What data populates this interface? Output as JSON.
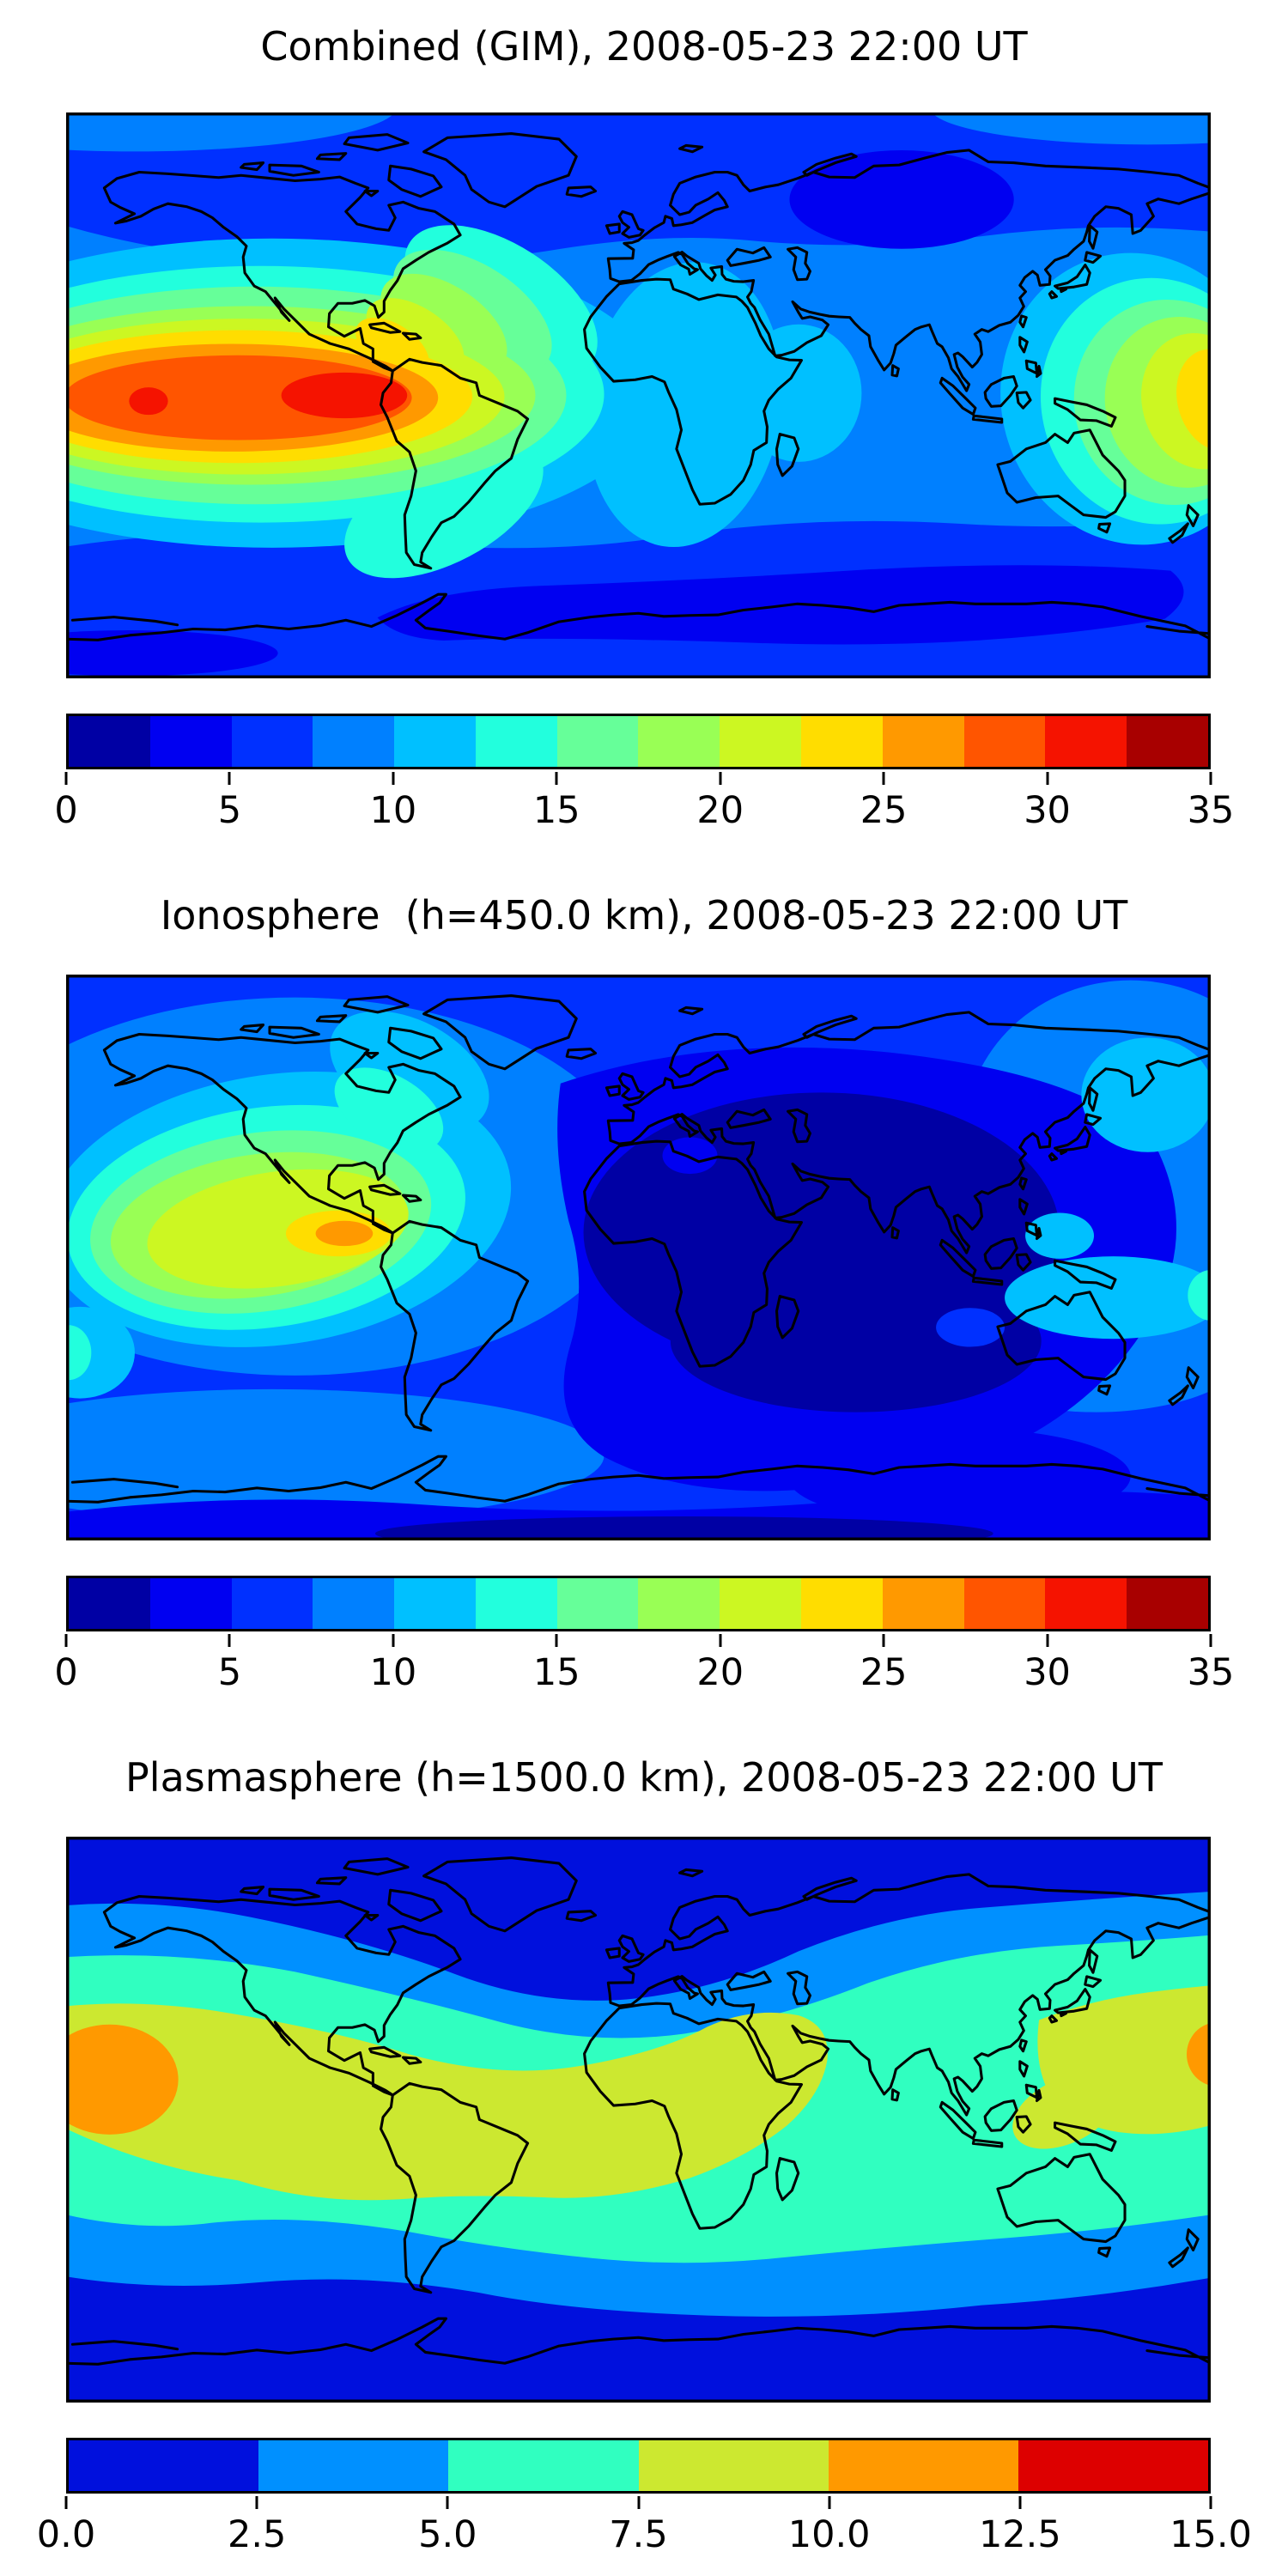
{
  "figure": {
    "background": "#ffffff",
    "coastline_color": "#000000"
  },
  "panels": [
    {
      "id": "combined",
      "title": "Combined (GIM), 2008-05-23 22:00 UT",
      "colorbar": {
        "orientation": "horizontal",
        "ticks": [
          "0",
          "5",
          "10",
          "15",
          "20",
          "25",
          "30",
          "35"
        ],
        "colors": [
          "#0000a4",
          "#0000f1",
          "#0030ff",
          "#0080ff",
          "#00c0ff",
          "#22ffdd",
          "#66ff99",
          "#99ff55",
          "#ccf722",
          "#ffdd00",
          "#ff9900",
          "#ff5500",
          "#f51300",
          "#a80000"
        ]
      }
    },
    {
      "id": "ionosphere",
      "title": "Ionosphere  (h=450.0 km), 2008-05-23 22:00 UT",
      "colorbar": {
        "orientation": "horizontal",
        "ticks": [
          "0",
          "5",
          "10",
          "15",
          "20",
          "25",
          "30",
          "35"
        ],
        "colors": [
          "#0000a4",
          "#0000f1",
          "#0030ff",
          "#0080ff",
          "#00c0ff",
          "#22ffdd",
          "#66ff99",
          "#99ff55",
          "#ccf722",
          "#ffdd00",
          "#ff9900",
          "#ff5500",
          "#f51300",
          "#a80000"
        ]
      }
    },
    {
      "id": "plasmasphere",
      "title": "Plasmasphere (h=1500.0 km), 2008-05-23 22:00 UT",
      "colorbar": {
        "orientation": "horizontal",
        "ticks": [
          "0.0",
          "2.5",
          "5.0",
          "7.5",
          "10.0",
          "12.5",
          "15.0"
        ],
        "colors": [
          "#0010dd",
          "#0090ff",
          "#30ffc0",
          "#cce830",
          "#ff9900",
          "#dd0000"
        ]
      }
    }
  ],
  "chart_data": [
    {
      "type": "heatmap",
      "subtype": "filled-contour-world-map",
      "title": "Combined (GIM), 2008-05-23 22:00 UT",
      "projection": "equirectangular",
      "lon_range": [
        -180,
        180
      ],
      "lat_range": [
        -90,
        90
      ],
      "value_range": [
        0,
        35
      ],
      "contour_interval": 2.5,
      "n_levels": 14,
      "colormap": "jet",
      "colorbar_ticks": [
        0,
        5,
        10,
        15,
        20,
        25,
        30,
        35
      ],
      "features": [
        {
          "name": "primary-maximum-east-pacific",
          "lon_deg": -115,
          "lat_deg": -3,
          "value_approx": 32
        },
        {
          "name": "secondary-maximum-central-pacific",
          "lon_deg": -160,
          "lat_deg": -5,
          "value_approx": 31
        },
        {
          "name": "west-pacific-enhancement-at-date-line",
          "lon_deg": 178,
          "lat_deg": 0,
          "value_approx": 25
        },
        {
          "name": "nightside-minimum-central-asia",
          "lon_deg": 80,
          "lat_deg": 62,
          "value_approx": 4
        },
        {
          "name": "southern-ocean-minimum-band",
          "lon_deg": 60,
          "lat_deg": -55,
          "value_approx": 4
        }
      ]
    },
    {
      "type": "heatmap",
      "subtype": "filled-contour-world-map",
      "title": "Ionosphere  (h=450.0 km), 2008-05-23 22:00 UT",
      "projection": "equirectangular",
      "lon_range": [
        -180,
        180
      ],
      "lat_range": [
        -90,
        90
      ],
      "value_range": [
        0,
        35
      ],
      "contour_interval": 2.5,
      "n_levels": 14,
      "colormap": "jet",
      "colorbar_ticks": [
        0,
        5,
        10,
        15,
        20,
        25,
        30,
        35
      ],
      "features": [
        {
          "name": "dayside-maximum-east-pacific",
          "lon_deg": -93,
          "lat_deg": 7,
          "value_approx": 27
        },
        {
          "name": "broad-yellow-region-pacific",
          "lon_deg": -125,
          "lat_deg": 8,
          "value_approx": 22
        },
        {
          "name": "nightside-minimum-africa-india",
          "lon_deg": 60,
          "lat_deg": 5,
          "value_approx": 2
        },
        {
          "name": "japan-sector-moderate",
          "lon_deg": 160,
          "lat_deg": 50,
          "value_approx": 12
        }
      ]
    },
    {
      "type": "heatmap",
      "subtype": "filled-contour-world-map",
      "title": "Plasmasphere (h=1500.0 km), 2008-05-23 22:00 UT",
      "projection": "equirectangular",
      "lon_range": [
        -180,
        180
      ],
      "lat_range": [
        -90,
        90
      ],
      "value_range": [
        0,
        15
      ],
      "contour_interval": 2.5,
      "n_levels": 6,
      "colormap": "jet",
      "colorbar_ticks": [
        0.0,
        2.5,
        5.0,
        7.5,
        10.0,
        12.5,
        15.0
      ],
      "features": [
        {
          "name": "equatorial-belt",
          "lon_deg": 0,
          "lat_deg": 0,
          "value_approx": 8.5
        },
        {
          "name": "maximum-central-pacific-left-edge",
          "lon_deg": -166,
          "lat_deg": 12,
          "value_approx": 11
        },
        {
          "name": "maximum-at-date-line-right-edge",
          "lon_deg": 180,
          "lat_deg": 20,
          "value_approx": 11
        },
        {
          "name": "polar-minimum-north",
          "lon_deg": 0,
          "lat_deg": 75,
          "value_approx": 1
        },
        {
          "name": "polar-minimum-south",
          "lon_deg": 0,
          "lat_deg": -70,
          "value_approx": 1
        }
      ]
    }
  ]
}
